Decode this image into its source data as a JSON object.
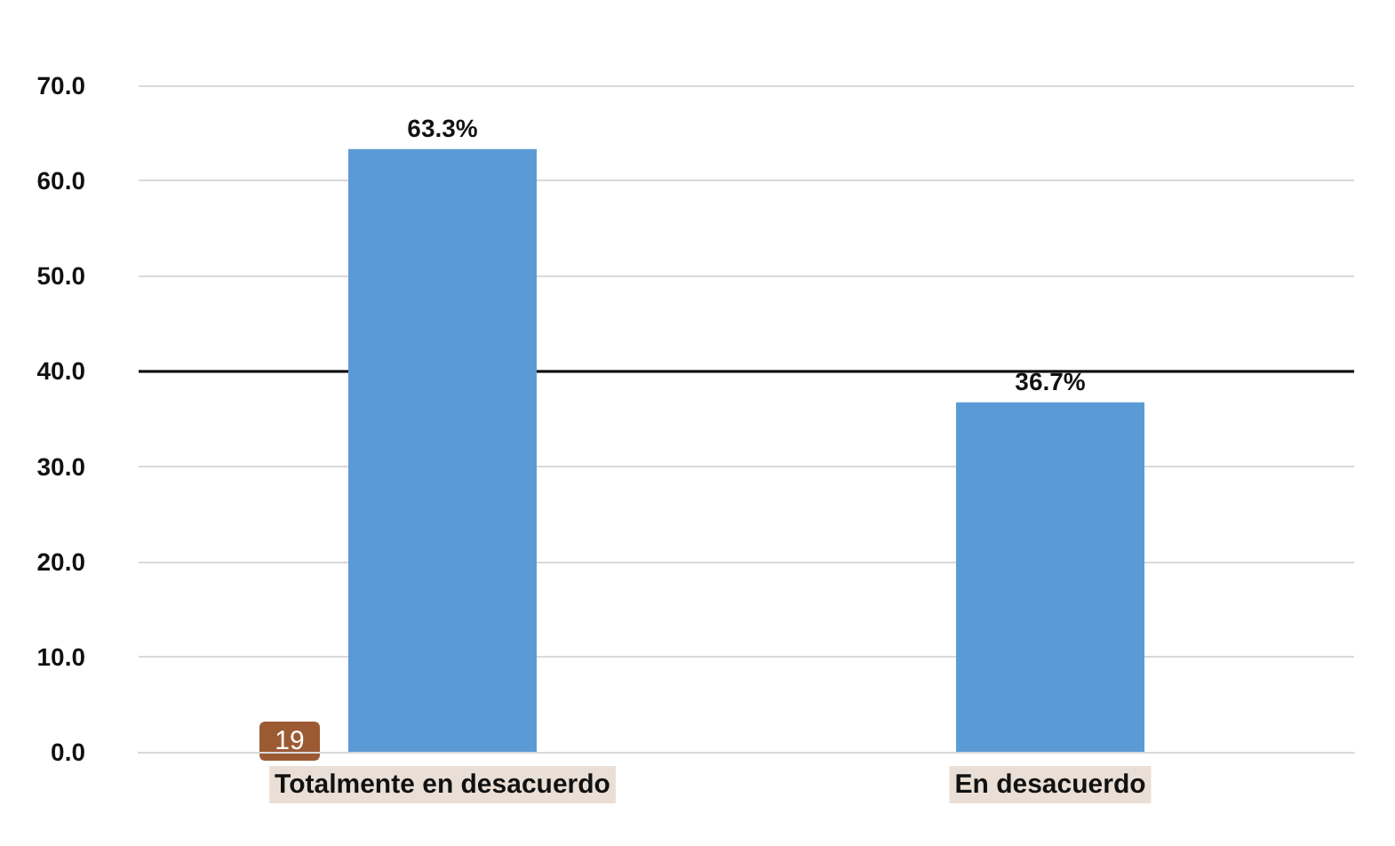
{
  "chart_data": {
    "type": "bar",
    "categories": [
      "Totalmente en desacuerdo",
      "En desacuerdo"
    ],
    "values": [
      63.3,
      36.7
    ],
    "color": "#5b9bd5",
    "value_labels": [
      "63.3%",
      "36.7%"
    ],
    "ylim": [
      0,
      70
    ],
    "yticks": [
      {
        "value": 0,
        "label": "0.0"
      },
      {
        "value": 10,
        "label": "10.0"
      },
      {
        "value": 20,
        "label": "20.0"
      },
      {
        "value": 30,
        "label": "30.0"
      },
      {
        "value": 40,
        "label": "40.0"
      },
      {
        "value": 50,
        "label": "50.0"
      },
      {
        "value": 60,
        "label": "60.0"
      },
      {
        "value": 70,
        "label": "70.0"
      }
    ],
    "grid": "y",
    "ref_lines": [
      {
        "axis": "y",
        "value": 40,
        "color": "#000000"
      }
    ],
    "annotations": [
      "19"
    ]
  }
}
